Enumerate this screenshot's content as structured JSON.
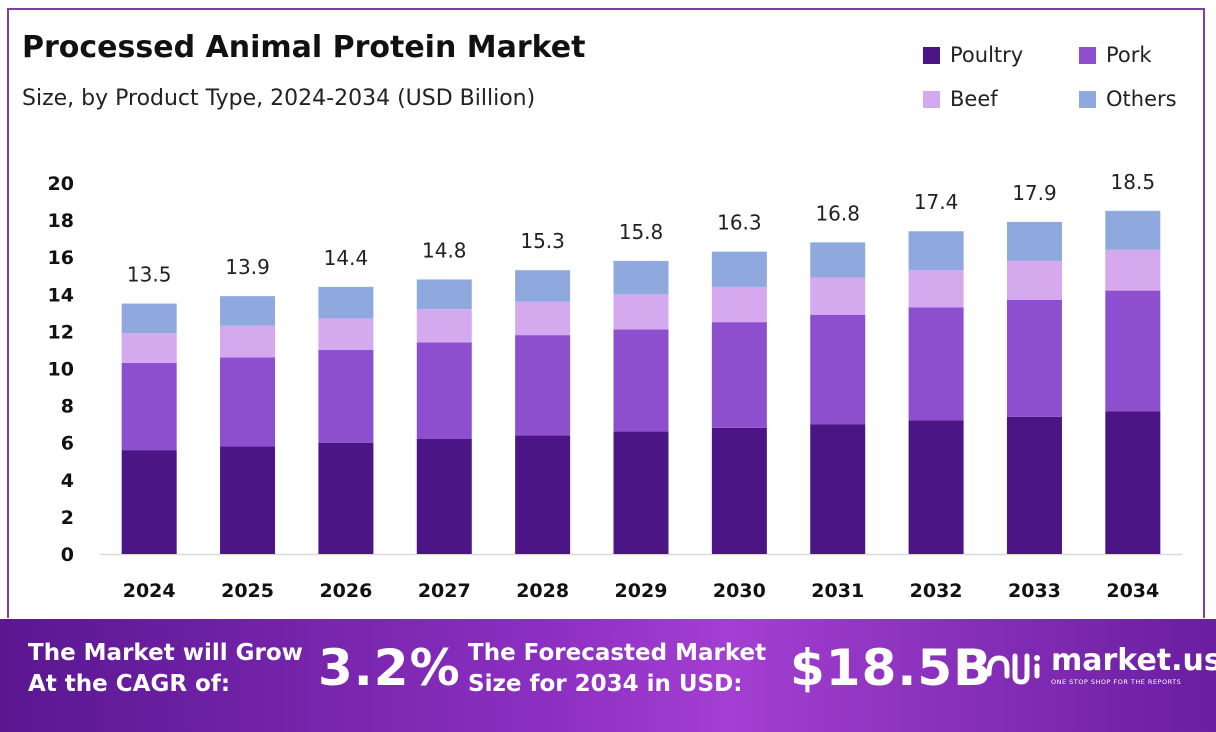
{
  "title": "Processed Animal Protein Market",
  "subtitle": "Size, by Product Type, 2024-2034 (USD Billion)",
  "legend": [
    {
      "name": "Poultry",
      "color": "#4b1585"
    },
    {
      "name": "Pork",
      "color": "#8e4fcf"
    },
    {
      "name": "Beef",
      "color": "#d5a9ee"
    },
    {
      "name": "Others",
      "color": "#8fa8dd"
    }
  ],
  "chart_data": {
    "type": "bar",
    "stacked": true,
    "categories": [
      "2024",
      "2025",
      "2026",
      "2027",
      "2028",
      "2029",
      "2030",
      "2031",
      "2032",
      "2033",
      "2034"
    ],
    "series": [
      {
        "name": "Poultry",
        "color": "#4b1585",
        "values": [
          5.6,
          5.8,
          6.0,
          6.2,
          6.4,
          6.6,
          6.8,
          7.0,
          7.2,
          7.4,
          7.7
        ]
      },
      {
        "name": "Pork",
        "color": "#8e4fcf",
        "values": [
          4.7,
          4.8,
          5.0,
          5.2,
          5.4,
          5.5,
          5.7,
          5.9,
          6.1,
          6.3,
          6.5
        ]
      },
      {
        "name": "Beef",
        "color": "#d5a9ee",
        "values": [
          1.6,
          1.7,
          1.7,
          1.8,
          1.8,
          1.9,
          1.9,
          2.0,
          2.0,
          2.1,
          2.2
        ]
      },
      {
        "name": "Others",
        "color": "#8fa8dd",
        "values": [
          1.6,
          1.6,
          1.7,
          1.6,
          1.7,
          1.8,
          1.9,
          1.9,
          2.1,
          2.1,
          2.1
        ]
      }
    ],
    "totals": [
      "13.5",
      "13.9",
      "14.4",
      "14.8",
      "15.3",
      "15.8",
      "16.3",
      "16.8",
      "17.4",
      "17.9",
      "18.5"
    ],
    "yticks": [
      0,
      2,
      4,
      6,
      8,
      10,
      12,
      14,
      16,
      18,
      20
    ],
    "ylim": [
      0,
      20
    ],
    "xlabel": "",
    "ylabel": "",
    "grid": false,
    "legend_position": "top-right"
  },
  "footer": {
    "cagr_label_line1": "The Market will Grow",
    "cagr_label_line2": "At the CAGR of:",
    "cagr_value": "3.2%",
    "forecast_label_line1": "The Forecasted Market",
    "forecast_label_line2": "Size for 2034 in USD:",
    "forecast_value": "$18.5B",
    "brand_name": "market.us",
    "brand_tagline": "ONE STOP SHOP FOR THE REPORTS",
    "brand_icon": "market-us-logo-icon"
  }
}
